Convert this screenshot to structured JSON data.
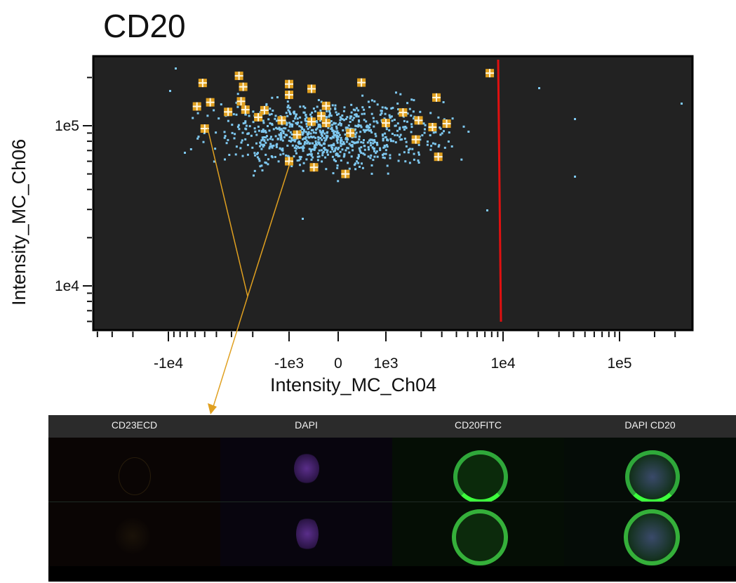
{
  "title": "CD20",
  "chart_data": {
    "type": "scatter",
    "title": "CD20",
    "xlabel": "Intensity_MC_Ch04",
    "ylabel": "Intensity_MC_Ch06",
    "xscale": "hyperlog",
    "yscale": "log",
    "x_ticks": [
      "-1e4",
      "-1e3",
      "0",
      "1e3",
      "1e4",
      "1e5"
    ],
    "y_ticks": [
      "1e5",
      "1e4"
    ],
    "xlim": [
      -50000,
      350000
    ],
    "ylim": [
      6000,
      250000
    ],
    "background": "#222222",
    "point_color": "#7ec8f0",
    "highlight_color": "#e0a020",
    "gate_color": "#e01010",
    "gate_x": 9000,
    "highlighted_points": [
      {
        "x": -5200,
        "y": 185000
      },
      {
        "x": -2600,
        "y": 205000
      },
      {
        "x": -2400,
        "y": 175000
      },
      {
        "x": -1000,
        "y": 182000
      },
      {
        "x": -550,
        "y": 170000
      },
      {
        "x": 480,
        "y": 186000
      },
      {
        "x": 7700,
        "y": 213000
      },
      {
        "x": -5800,
        "y": 132000
      },
      {
        "x": -4500,
        "y": 140000
      },
      {
        "x": -2500,
        "y": 142000
      },
      {
        "x": -3200,
        "y": 122000
      },
      {
        "x": -1000,
        "y": 156000
      },
      {
        "x": -2300,
        "y": 126000
      },
      {
        "x": -1600,
        "y": 125000
      },
      {
        "x": -1800,
        "y": 113000
      },
      {
        "x": -1150,
        "y": 108000
      },
      {
        "x": -550,
        "y": 106000
      },
      {
        "x": -350,
        "y": 115000
      },
      {
        "x": -250,
        "y": 133000
      },
      {
        "x": -250,
        "y": 104000
      },
      {
        "x": 2700,
        "y": 150000
      },
      {
        "x": 1400,
        "y": 121000
      },
      {
        "x": 1900,
        "y": 108000
      },
      {
        "x": 1000,
        "y": 104000
      },
      {
        "x": 2500,
        "y": 98000
      },
      {
        "x": 3300,
        "y": 103000
      },
      {
        "x": 250,
        "y": 90000
      },
      {
        "x": -5000,
        "y": 96000
      },
      {
        "x": -850,
        "y": 88000
      },
      {
        "x": 1800,
        "y": 82000
      },
      {
        "x": 2800,
        "y": 64000
      },
      {
        "x": -1000,
        "y": 60000
      },
      {
        "x": -500,
        "y": 55000
      },
      {
        "x": 150,
        "y": 50000
      }
    ],
    "annotations": [
      "arrow from selected event to image gallery row 1"
    ]
  },
  "gallery": {
    "channels": [
      "CD23ECD",
      "DAPI",
      "CD20FITC",
      "DAPI CD20"
    ]
  }
}
